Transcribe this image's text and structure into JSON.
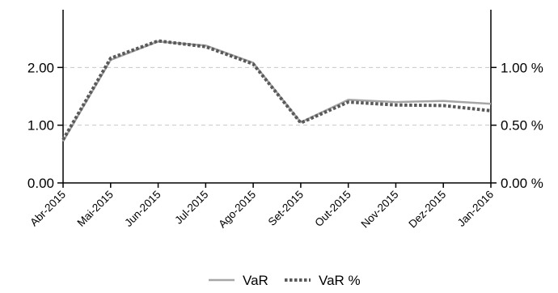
{
  "chart_data": {
    "type": "line",
    "title": "",
    "categories": [
      "Abr-2015",
      "Mai-2015",
      "Jun-2015",
      "Jul-2015",
      "Ago-2015",
      "Set-2015",
      "Out-2015",
      "Nov-2015",
      "Dez-2015",
      "Jan-2016"
    ],
    "series": [
      {
        "name": "VaR",
        "axis": "left",
        "values": [
          0.72,
          2.13,
          2.45,
          2.38,
          2.08,
          1.05,
          1.44,
          1.4,
          1.42,
          1.37
        ],
        "color": "#a6a6a6",
        "style": "solid"
      },
      {
        "name": "VaR %",
        "axis": "right",
        "values": [
          0.375,
          1.08,
          1.23,
          1.18,
          1.03,
          0.52,
          0.7,
          0.675,
          0.67,
          0.625
        ],
        "color": "#595959",
        "style": "dotted"
      }
    ],
    "left_axis": {
      "min": 0,
      "max": 3.0,
      "ticks": [
        0,
        1,
        2
      ],
      "tick_labels": [
        "0.00",
        "1.00",
        "2.00"
      ]
    },
    "right_axis": {
      "min": 0,
      "max": 1.5,
      "ticks": [
        0,
        0.5,
        1.0
      ],
      "tick_labels": [
        "0.00 %",
        "0.50 %",
        "1.00 %"
      ]
    },
    "grid": true,
    "legend_position": "bottom-center"
  }
}
